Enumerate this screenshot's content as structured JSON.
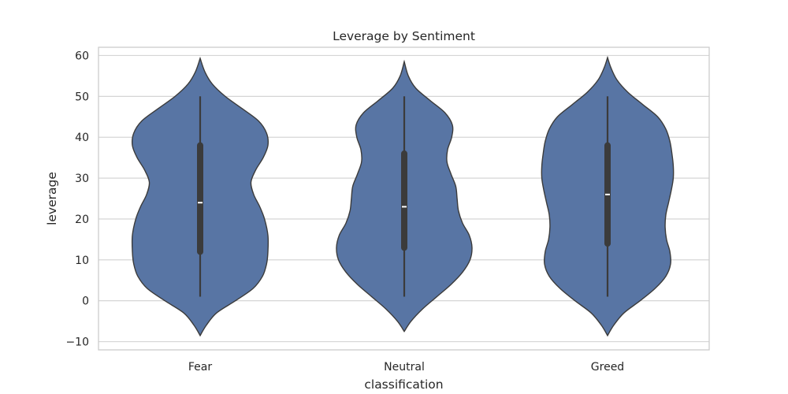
{
  "chart_data": {
    "type": "violin",
    "title": "Leverage by Sentiment",
    "xlabel": "classification",
    "ylabel": "leverage",
    "categories": [
      "Fear",
      "Neutral",
      "Greed"
    ],
    "ylim": [
      -12,
      62
    ],
    "yticks": [
      -10,
      0,
      10,
      20,
      30,
      40,
      50,
      60
    ],
    "ytick_labels": [
      "−10",
      "0",
      "10",
      "20",
      "30",
      "40",
      "50",
      "60"
    ],
    "grid": true,
    "colors": {
      "fill": "#5875a4",
      "edge": "#3b3b3b",
      "box": "#3b3b3b",
      "median": "#ffffff",
      "grid": "#d0d0d0",
      "frame": "#cccccc"
    },
    "series": [
      {
        "category": "Fear",
        "whisker_low": 1,
        "q1": 12,
        "median": 24,
        "q3": 38,
        "whisker_high": 50,
        "kde_extent": [
          -8.5,
          59.3
        ],
        "density": [
          [
            -8.5,
            0.0
          ],
          [
            -6,
            0.09
          ],
          [
            -3,
            0.24
          ],
          [
            0,
            0.52
          ],
          [
            3,
            0.78
          ],
          [
            6,
            0.92
          ],
          [
            9,
            0.98
          ],
          [
            12,
            1.0
          ],
          [
            16,
            1.0
          ],
          [
            20,
            0.95
          ],
          [
            23,
            0.88
          ],
          [
            26,
            0.79
          ],
          [
            29,
            0.75
          ],
          [
            32,
            0.82
          ],
          [
            35,
            0.93
          ],
          [
            38,
            1.0
          ],
          [
            41,
            0.98
          ],
          [
            44,
            0.86
          ],
          [
            47,
            0.62
          ],
          [
            50,
            0.37
          ],
          [
            53,
            0.18
          ],
          [
            56,
            0.07
          ],
          [
            59.3,
            0.0
          ]
        ]
      },
      {
        "category": "Neutral",
        "whisker_low": 1,
        "q1": 13,
        "median": 23,
        "q3": 36,
        "whisker_high": 50,
        "kde_extent": [
          -7.5,
          58.5
        ],
        "density": [
          [
            -7.5,
            0.0
          ],
          [
            -5,
            0.1
          ],
          [
            -2,
            0.27
          ],
          [
            1,
            0.48
          ],
          [
            4,
            0.69
          ],
          [
            7,
            0.86
          ],
          [
            10,
            0.97
          ],
          [
            13,
            1.0
          ],
          [
            16,
            0.96
          ],
          [
            19,
            0.86
          ],
          [
            22,
            0.8
          ],
          [
            25,
            0.78
          ],
          [
            28,
            0.76
          ],
          [
            31,
            0.69
          ],
          [
            34,
            0.63
          ],
          [
            37,
            0.64
          ],
          [
            40,
            0.7
          ],
          [
            43,
            0.71
          ],
          [
            46,
            0.6
          ],
          [
            49,
            0.38
          ],
          [
            52,
            0.17
          ],
          [
            55,
            0.06
          ],
          [
            58.5,
            0.0
          ]
        ]
      },
      {
        "category": "Greed",
        "whisker_low": 1,
        "q1": 14,
        "median": 26,
        "q3": 38,
        "whisker_high": 50,
        "kde_extent": [
          -8.5,
          59.5
        ],
        "density": [
          [
            -8.5,
            0.0
          ],
          [
            -6,
            0.09
          ],
          [
            -3,
            0.24
          ],
          [
            0,
            0.48
          ],
          [
            3,
            0.7
          ],
          [
            6,
            0.86
          ],
          [
            9,
            0.93
          ],
          [
            12,
            0.92
          ],
          [
            15,
            0.87
          ],
          [
            18,
            0.85
          ],
          [
            21,
            0.86
          ],
          [
            24,
            0.9
          ],
          [
            27,
            0.94
          ],
          [
            30,
            0.97
          ],
          [
            33,
            0.97
          ],
          [
            36,
            0.95
          ],
          [
            39,
            0.92
          ],
          [
            42,
            0.86
          ],
          [
            45,
            0.74
          ],
          [
            48,
            0.52
          ],
          [
            51,
            0.3
          ],
          [
            54,
            0.14
          ],
          [
            57,
            0.05
          ],
          [
            59.5,
            0.0
          ]
        ]
      }
    ]
  }
}
